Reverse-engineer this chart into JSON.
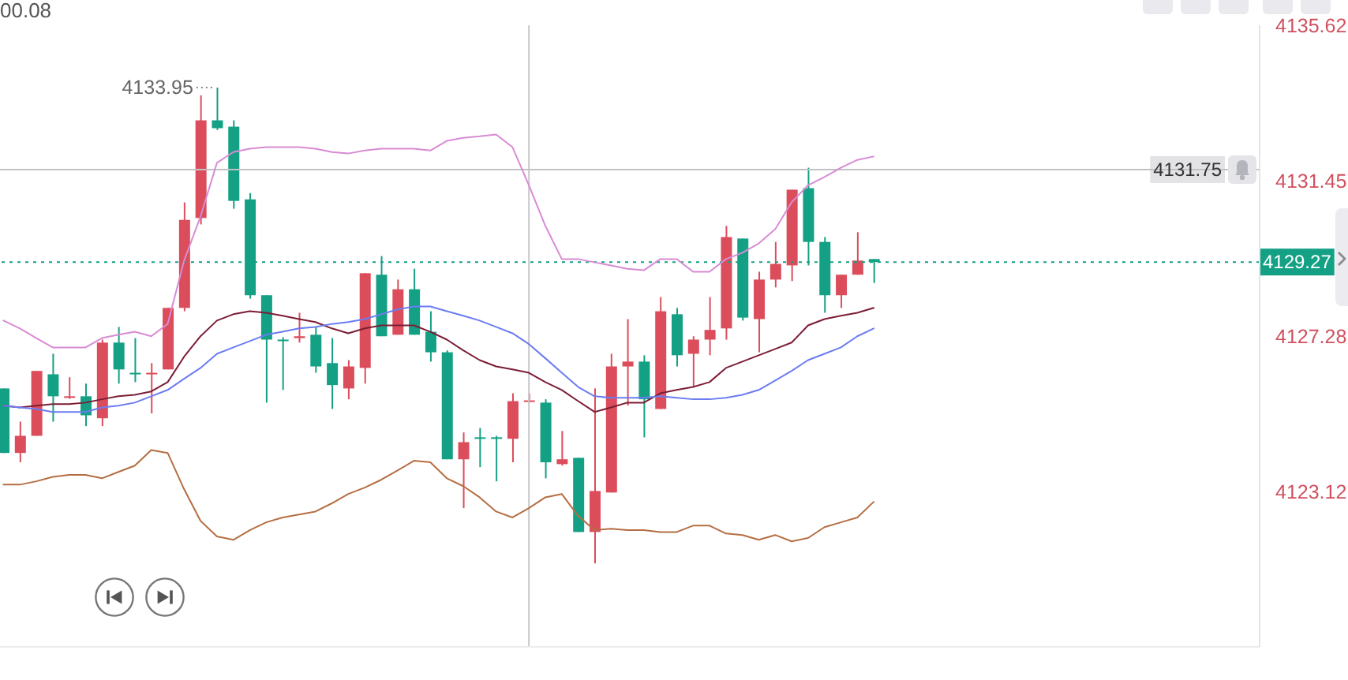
{
  "chart_data": {
    "type": "candlestick",
    "categories": [
      null,
      null,
      null,
      null,
      null,
      null,
      null,
      null,
      null,
      null,
      null,
      null,
      null,
      null,
      null,
      null,
      null,
      null,
      null,
      null,
      null,
      null,
      null,
      null,
      null,
      null,
      null,
      null,
      null,
      null,
      null,
      null,
      null,
      null,
      null,
      null,
      null,
      null,
      null,
      null,
      null,
      null,
      null,
      null,
      null,
      null,
      null,
      null,
      null,
      null,
      null,
      null,
      null,
      null,
      null,
      null,
      null,
      null,
      null,
      null,
      null,
      null,
      null,
      null,
      null,
      null,
      null,
      null,
      null,
      null,
      null,
      null,
      null,
      null,
      null,
      null,
      null
    ],
    "ohlc": [
      [
        4125.88,
        4125.88,
        4124.15,
        4124.15
      ],
      [
        4124.15,
        4124.99,
        4123.9,
        4124.61
      ],
      [
        4124.61,
        4126.35,
        4124.61,
        4126.35
      ],
      [
        4126.26,
        4126.81,
        4124.99,
        4125.67
      ],
      [
        4125.63,
        4126.18,
        4125.6,
        4125.67
      ],
      [
        4125.67,
        4126.01,
        4124.87,
        4125.16
      ],
      [
        4125.08,
        4127.19,
        4124.87,
        4127.11
      ],
      [
        4127.11,
        4127.53,
        4126.01,
        4126.39
      ],
      [
        4126.3,
        4127.23,
        4126.05,
        4126.26
      ],
      [
        4126.26,
        4126.56,
        4125.21,
        4126.3
      ],
      [
        4126.39,
        4128.04,
        4126.39,
        4128.04
      ],
      [
        4128.04,
        4130.87,
        4127.95,
        4130.4
      ],
      [
        4130.45,
        4133.74,
        4130.28,
        4133.07
      ],
      [
        4133.07,
        4133.95,
        4132.81,
        4132.86
      ],
      [
        4132.9,
        4133.07,
        4130.7,
        4130.91
      ],
      [
        4130.95,
        4131.12,
        4128.29,
        4128.38
      ],
      [
        4128.38,
        4128.38,
        4125.5,
        4127.19
      ],
      [
        4127.19,
        4127.25,
        4125.84,
        4127.15
      ],
      [
        4127.23,
        4127.91,
        4127.11,
        4127.28
      ],
      [
        4127.32,
        4127.53,
        4126.3,
        4126.47
      ],
      [
        4126.56,
        4127.23,
        4125.33,
        4125.97
      ],
      [
        4125.88,
        4126.64,
        4125.59,
        4126.47
      ],
      [
        4126.43,
        4128.97,
        4126.01,
        4128.97
      ],
      [
        4128.93,
        4129.43,
        4127.28,
        4127.28
      ],
      [
        4127.32,
        4128.8,
        4127.32,
        4128.54
      ],
      [
        4128.54,
        4129.09,
        4127.32,
        4127.32
      ],
      [
        4127.4,
        4127.95,
        4126.6,
        4126.85
      ],
      [
        4126.85,
        4126.9,
        4123.98,
        4123.98
      ],
      [
        4123.98,
        4124.7,
        4122.67,
        4124.44
      ],
      [
        4124.57,
        4124.82,
        4123.77,
        4124.53
      ],
      [
        4124.57,
        4124.61,
        4123.39,
        4124.53
      ],
      [
        4124.53,
        4125.75,
        4123.9,
        4125.54
      ],
      [
        4125.52,
        4125.75,
        4125.5,
        4125.56
      ],
      [
        4125.5,
        4125.59,
        4123.47,
        4123.9
      ],
      [
        4123.85,
        4124.74,
        4123.81,
        4123.98
      ],
      [
        4124.02,
        4124.02,
        4122.03,
        4122.03
      ],
      [
        4122.03,
        4125.88,
        4121.19,
        4123.13
      ],
      [
        4123.09,
        4126.81,
        4123.09,
        4126.47
      ],
      [
        4126.47,
        4127.74,
        4125.42,
        4126.6
      ],
      [
        4126.6,
        4126.77,
        4124.57,
        4125.59
      ],
      [
        4125.33,
        4128.33,
        4125.33,
        4127.95
      ],
      [
        4127.87,
        4128.04,
        4126.47,
        4126.77
      ],
      [
        4126.81,
        4127.28,
        4125.92,
        4127.19
      ],
      [
        4127.19,
        4128.33,
        4126.77,
        4127.45
      ],
      [
        4127.49,
        4130.24,
        4127.19,
        4129.94
      ],
      [
        4129.9,
        4129.9,
        4127.7,
        4127.78
      ],
      [
        4127.74,
        4129.01,
        4126.85,
        4128.8
      ],
      [
        4128.8,
        4129.81,
        4128.59,
        4129.22
      ],
      [
        4129.18,
        4131.21,
        4128.76,
        4131.21
      ],
      [
        4131.25,
        4131.8,
        4129.18,
        4129.81
      ],
      [
        4129.81,
        4129.94,
        4127.91,
        4128.38
      ],
      [
        4128.38,
        4128.93,
        4128.04,
        4128.93
      ],
      [
        4128.93,
        4130.07,
        4128.93,
        4129.31
      ],
      [
        4129.35,
        4129.35,
        4128.71,
        4129.27
      ],
      null,
      null,
      null,
      null,
      null,
      null,
      null,
      null,
      null,
      null,
      null,
      null,
      null,
      null,
      null,
      null,
      null,
      null,
      null,
      null,
      null,
      null,
      null
    ],
    "colors": [
      "#14a085",
      "#dc4d5c",
      "#dc4d5c",
      "#14a085",
      "#dc4d5c",
      "#14a085",
      "#dc4d5c",
      "#14a085",
      "#14a085",
      "#dc4d5c",
      "#dc4d5c",
      "#dc4d5c",
      "#dc4d5c",
      "#14a085",
      "#14a085",
      "#14a085",
      "#14a085",
      "#14a085",
      "#dc4d5c",
      "#14a085",
      "#14a085",
      "#dc4d5c",
      "#dc4d5c",
      "#14a085",
      "#dc4d5c",
      "#14a085",
      "#14a085",
      "#14a085",
      "#dc4d5c",
      "#14a085",
      "#14a085",
      "#dc4d5c",
      "#dc4d5c",
      "#14a085",
      "#dc4d5c",
      "#14a085",
      "#dc4d5c",
      "#dc4d5c",
      "#dc4d5c",
      "#14a085",
      "#dc4d5c",
      "#14a085",
      "#dc4d5c",
      "#dc4d5c",
      "#dc4d5c",
      "#14a085",
      "#dc4d5c",
      "#dc4d5c",
      "#dc4d5c",
      "#14a085",
      "#14a085",
      "#dc4d5c",
      "#dc4d5c",
      "#14a085",
      null,
      null,
      null,
      null,
      null,
      null,
      null,
      null,
      null,
      null,
      null,
      null,
      null,
      null,
      null,
      null,
      null,
      null,
      null,
      null,
      null,
      null,
      null
    ],
    "series": [
      {
        "type": "line",
        "color": "#d88bd4",
        "values": [
          4127.7,
          4127.49,
          4127.23,
          4126.98,
          4126.98,
          4126.98,
          4127.23,
          4127.32,
          4127.4,
          4127.28,
          4127.61,
          4129.31,
          4130.49,
          4131.93,
          4132.22,
          4132.31,
          4132.35,
          4132.35,
          4132.35,
          4132.31,
          4132.22,
          4132.18,
          4132.26,
          4132.31,
          4132.31,
          4132.31,
          4132.26,
          4132.52,
          4132.6,
          4132.64,
          4132.69,
          4132.35,
          4131.33,
          4130.24,
          4129.35,
          4129.35,
          4129.26,
          4129.18,
          4129.09,
          4129.05,
          4129.35,
          4129.35,
          4129.01,
          4129.01,
          4129.35,
          4129.52,
          4129.77,
          4130.15,
          4130.87,
          4131.33,
          4131.55,
          4131.8,
          4132.01,
          4132.1,
          null,
          null,
          null,
          null,
          null,
          null,
          null,
          null,
          null,
          null,
          null,
          null,
          null,
          null,
          null,
          null,
          null,
          null,
          null,
          null,
          null,
          null,
          null
        ]
      },
      {
        "type": "line",
        "color": "#7c1d35",
        "values": [
          4125.42,
          4125.37,
          4125.42,
          4125.46,
          4125.46,
          4125.5,
          4125.59,
          4125.67,
          4125.71,
          4125.8,
          4126.05,
          4126.73,
          4127.28,
          4127.7,
          4127.87,
          4127.95,
          4127.91,
          4127.83,
          4127.74,
          4127.66,
          4127.49,
          4127.36,
          4127.49,
          4127.57,
          4127.57,
          4127.57,
          4127.4,
          4127.19,
          4126.9,
          4126.64,
          4126.47,
          4126.39,
          4126.3,
          4126.05,
          4125.84,
          4125.54,
          4125.25,
          4125.37,
          4125.5,
          4125.5,
          4125.75,
          4125.84,
          4125.92,
          4126.05,
          4126.43,
          4126.6,
          4126.77,
          4126.94,
          4127.11,
          4127.57,
          4127.74,
          4127.83,
          4127.91,
          4128.04,
          null,
          null,
          null,
          null,
          null,
          null,
          null,
          null,
          null,
          null,
          null,
          null,
          null,
          null,
          null,
          null,
          null,
          null,
          null,
          null,
          null,
          null,
          null
        ]
      },
      {
        "type": "line",
        "color": "#6b7cf2",
        "values": [
          4125.42,
          4125.37,
          4125.33,
          4125.25,
          4125.25,
          4125.25,
          4125.37,
          4125.42,
          4125.5,
          4125.67,
          4125.84,
          4126.14,
          4126.43,
          4126.81,
          4126.98,
          4127.15,
          4127.32,
          4127.4,
          4127.49,
          4127.53,
          4127.61,
          4127.66,
          4127.74,
          4127.87,
          4128.0,
          4128.08,
          4128.08,
          4127.95,
          4127.83,
          4127.7,
          4127.53,
          4127.36,
          4127.07,
          4126.69,
          4126.3,
          4125.92,
          4125.67,
          4125.63,
          4125.63,
          4125.63,
          4125.67,
          4125.63,
          4125.59,
          4125.59,
          4125.63,
          4125.71,
          4125.84,
          4126.09,
          4126.35,
          4126.64,
          4126.81,
          4126.98,
          4127.28,
          4127.49,
          null,
          null,
          null,
          null,
          null,
          null,
          null,
          null,
          null,
          null,
          null,
          null,
          null,
          null,
          null,
          null,
          null,
          null,
          null,
          null,
          null,
          null,
          null
        ]
      },
      {
        "type": "line",
        "color": "#b56e42",
        "values": [
          4123.3,
          4123.3,
          4123.39,
          4123.51,
          4123.56,
          4123.56,
          4123.47,
          4123.64,
          4123.81,
          4124.23,
          4124.15,
          4123.18,
          4122.33,
          4121.91,
          4121.82,
          4122.08,
          4122.29,
          4122.42,
          4122.5,
          4122.58,
          4122.8,
          4123.05,
          4123.22,
          4123.43,
          4123.68,
          4123.94,
          4123.9,
          4123.47,
          4123.26,
          4122.96,
          4122.58,
          4122.42,
          4122.67,
          4122.96,
          4123.05,
          4122.46,
          4122.08,
          4122.12,
          4122.08,
          4122.08,
          4122.03,
          4122.03,
          4122.2,
          4122.2,
          4121.99,
          4121.95,
          4121.82,
          4121.95,
          4121.78,
          4121.87,
          4122.16,
          4122.29,
          4122.42,
          4122.84,
          null,
          null,
          null,
          null,
          null,
          null,
          null,
          null,
          null,
          null,
          null,
          null,
          null,
          null,
          null,
          null,
          null,
          null,
          null,
          null,
          null,
          null,
          null
        ]
      }
    ],
    "ylim": [
      4118.95,
      4135.62
    ],
    "yticks": [
      4135.62,
      4131.45,
      4127.28,
      4123.12
    ],
    "tick_labels": "y",
    "ref_lines": [
      {
        "axis": "y",
        "value": 4131.75,
        "label": "4131.75",
        "color": "#c2c2c6"
      },
      {
        "axis": "y",
        "value": 4129.27,
        "label": "4129.27",
        "color": "#14a085",
        "line_style": "dotted"
      }
    ],
    "annotations": [
      "4133.95",
      "00.08"
    ]
  }
}
